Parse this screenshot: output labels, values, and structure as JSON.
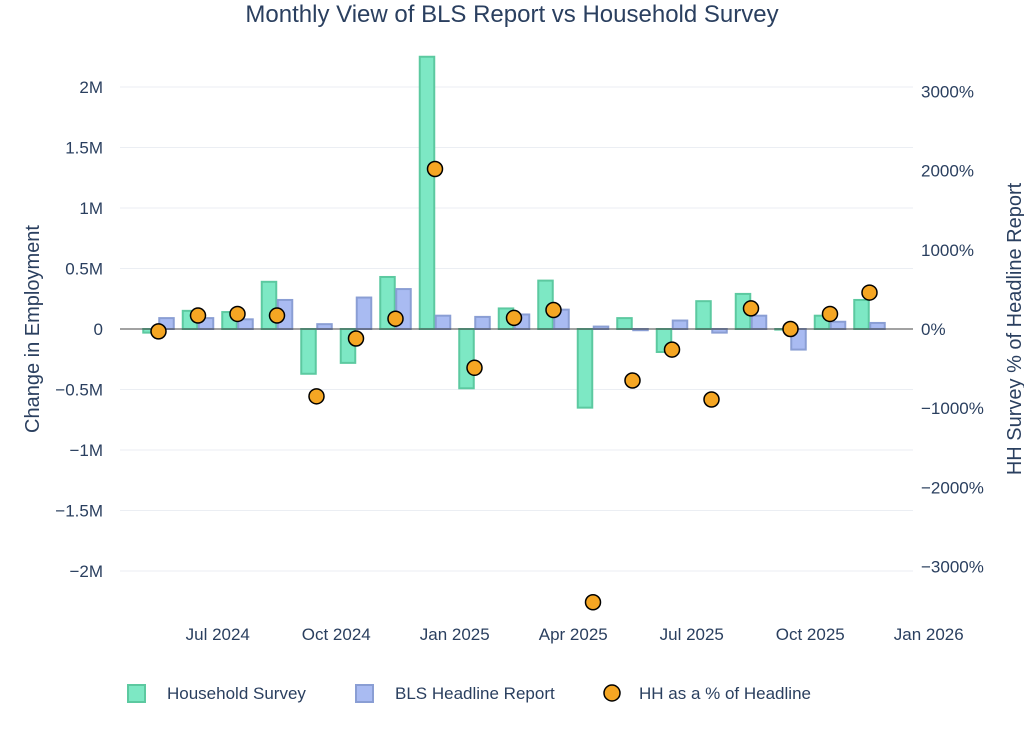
{
  "chart_data": {
    "type": "bar",
    "title": "Monthly View of BLS Report vs Household Survey",
    "ylabel": "Change in Employment",
    "y2label": "HH Survey % of Headline Report",
    "ylim": [
      -2350000,
      2350000
    ],
    "y2lim": [
      -3650,
      3650
    ],
    "yticks": [
      2000000,
      1500000,
      1000000,
      500000,
      0,
      -500000,
      -1000000,
      -1500000,
      -2000000
    ],
    "ytick_labels": [
      "2M",
      "1.5M",
      "1M",
      "0.5M",
      "0",
      "−0.5M",
      "−1M",
      "−1.5M",
      "−2M"
    ],
    "y2ticks": [
      3000,
      2000,
      1000,
      0,
      -1000,
      -2000,
      -3000
    ],
    "y2tick_labels": [
      "3000%",
      "2000%",
      "1000%",
      "0%",
      "−1000%",
      "−2000%",
      "−3000%"
    ],
    "xtick_labels": [
      "Jul 2024",
      "Oct 2024",
      "Jan 2025",
      "Apr 2025",
      "Jul 2025",
      "Oct 2025",
      "Jan 2026"
    ],
    "xtick_positions": [
      1.5,
      4.5,
      7.5,
      10.5,
      13.5,
      16.5,
      19.5
    ],
    "categories": [
      "Jun 2024",
      "Jul 2024",
      "Aug 2024",
      "Sep 2024",
      "Oct 2024",
      "Nov 2024",
      "Dec 2024",
      "Jan 2025",
      "Feb 2025",
      "Mar 2025",
      "Apr 2025",
      "May 2025",
      "Jun 2025",
      "Jul 2025",
      "Aug 2025",
      "Sep 2025",
      "Oct 2025",
      "Nov 2025",
      "Dec 2025"
    ],
    "series": [
      {
        "name": "Household Survey",
        "kind": "bar",
        "axis": "y",
        "color": "#7de8c4",
        "edge": "#5cc9a0",
        "values": [
          -30000,
          150000,
          140000,
          390000,
          -370000,
          -280000,
          430000,
          2250000,
          -490000,
          170000,
          400000,
          -650000,
          90000,
          -190000,
          230000,
          290000,
          0,
          110000,
          240000
        ]
      },
      {
        "name": "BLS Headline Report",
        "kind": "bar",
        "axis": "y",
        "color": "#a9bbf2",
        "edge": "#8a9ed4",
        "values": [
          90000,
          90000,
          80000,
          240000,
          40000,
          260000,
          330000,
          110000,
          100000,
          120000,
          160000,
          20000,
          -10000,
          70000,
          -30000,
          110000,
          -170000,
          60000,
          50000
        ]
      },
      {
        "name": "HH as a % of Headline",
        "kind": "scatter",
        "axis": "y2",
        "color": "#f5a623",
        "edge": "#000000",
        "values": [
          -30,
          170,
          190,
          170,
          -850,
          -120,
          130,
          2020,
          -490,
          140,
          240,
          -3450,
          -650,
          -260,
          -890,
          260,
          0,
          190,
          460
        ]
      }
    ],
    "legend": "bottom"
  }
}
